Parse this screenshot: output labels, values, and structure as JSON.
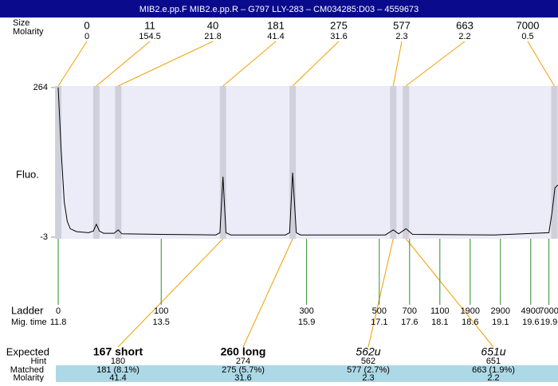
{
  "header": {
    "title": "MIB2.e.pp.F  MIB2.e.pp.R – G797 LLY-283 – CM034285:D03 – 4559673"
  },
  "labels": {
    "size": "Size",
    "molarity": "Molarity",
    "fluo": "Fluo.",
    "ladder": "Ladder",
    "mig_time": "Mig. time",
    "expected": "Expected",
    "hint": "Hint",
    "matched": "Matched",
    "molarity_bottom": "Molarity"
  },
  "chart_data": {
    "type": "line",
    "ylim": [
      -3,
      264
    ],
    "yticks": [
      264,
      -3
    ],
    "xlim": [
      11.76,
      20.05
    ],
    "peaks": [
      {
        "size": 0,
        "molarity": 0,
        "time": 11.8
      },
      {
        "size": 11,
        "molarity": 154.5,
        "time": 12.43
      },
      {
        "size": 40,
        "molarity": 21.8,
        "time": 12.79
      },
      {
        "size": 181,
        "molarity": 41.4,
        "time": 14.52
      },
      {
        "size": 275,
        "molarity": 31.6,
        "time": 15.67
      },
      {
        "size": 577,
        "molarity": 2.3,
        "time": 17.33
      },
      {
        "size": 663,
        "molarity": 2.2,
        "time": 17.54
      },
      {
        "size": 7000,
        "molarity": 0.5,
        "time": 19.99
      }
    ],
    "ladder": [
      {
        "bp": 0,
        "time": 11.8
      },
      {
        "bp": 100,
        "time": 13.5
      },
      {
        "bp": 300,
        "time": 15.9
      },
      {
        "bp": 500,
        "time": 17.1
      },
      {
        "bp": 700,
        "time": 17.6
      },
      {
        "bp": 1100,
        "time": 18.1
      },
      {
        "bp": 1900,
        "time": 18.6
      },
      {
        "bp": 2900,
        "time": 19.1
      },
      {
        "bp": 4900,
        "time": 19.6
      },
      {
        "bp": 7000,
        "time": 19.9
      }
    ],
    "trace": {
      "color": "#000000",
      "x": [
        11.8,
        11.85,
        11.9,
        11.95,
        12.0,
        12.1,
        12.3,
        12.38,
        12.43,
        12.48,
        12.55,
        12.72,
        12.79,
        12.85,
        13.5,
        14.4,
        14.47,
        14.52,
        14.57,
        14.65,
        15.55,
        15.62,
        15.67,
        15.73,
        15.8,
        17.2,
        17.33,
        17.42,
        17.54,
        17.65,
        19.0,
        19.9,
        19.95,
        20.0,
        20.05
      ],
      "y": [
        264,
        150,
        60,
        25,
        12,
        7,
        5,
        8,
        20,
        8,
        4,
        4,
        10,
        3,
        2,
        1,
        5,
        105,
        5,
        1,
        1,
        5,
        112,
        5,
        1,
        1,
        10,
        3,
        12,
        2,
        1,
        5,
        40,
        85,
        90
      ]
    },
    "expected": [
      {
        "name": "167 short",
        "hint": 180,
        "matched": "181 (8.1%)",
        "molarity": 41.4
      },
      {
        "name": "260 long",
        "hint": 274,
        "matched": "275 (5.7%)",
        "molarity": 31.6
      },
      {
        "name": "562u",
        "hint": 562,
        "matched": "577 (2.7%)",
        "molarity": 2.3
      },
      {
        "name": "651u",
        "hint": 651,
        "matched": "663 (1.9%)",
        "molarity": 2.2
      }
    ]
  }
}
